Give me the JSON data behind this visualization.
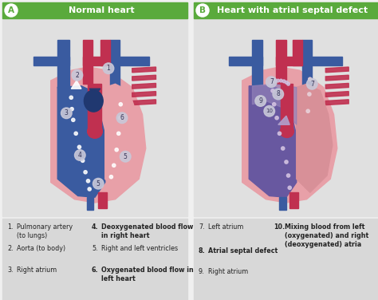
{
  "title_a": "Normal heart",
  "title_b": "Heart with atrial septal defect",
  "label_a": "A",
  "label_b": "B",
  "header_color": "#5aaa3c",
  "header_text_color": "#ffffff",
  "outer_bg": "#f0f0f0",
  "panel_bg": "#e0e0e0",
  "legend_bg": "#d8d8d8",
  "blue_vessel": "#3a5ba0",
  "red_vessel": "#cc3344",
  "heart_blue": "#3a5ba0",
  "heart_pink": "#e8a0a8",
  "heart_dark_red": "#b03040",
  "heart_purple": "#8878aa",
  "legend_left": [
    {
      "col": 1,
      "num": "1.",
      "text": "Pulmonary artery\n(to lungs)",
      "bold": false
    },
    {
      "col": 2,
      "num": "4.",
      "text": "Deoxygenated blood flow\nin right heart",
      "bold": true
    },
    {
      "col": 1,
      "num": "2.",
      "text": "Aorta (to body)",
      "bold": false
    },
    {
      "col": 2,
      "num": "5.",
      "text": "Right and left ventricles",
      "bold": false
    },
    {
      "col": 1,
      "num": "3.",
      "text": "Right atrium",
      "bold": false
    },
    {
      "col": 2,
      "num": "6.",
      "text": "Oxygenated blood flow in\nleft heart",
      "bold": true
    }
  ],
  "legend_right": [
    {
      "col": 1,
      "num": "7.",
      "text": "Left atrium",
      "bold": false
    },
    {
      "col": 2,
      "num": "10.",
      "text": "Mixing blood from left\n(oxygenated) and right\n(deoxygenated) atria",
      "bold": true
    },
    {
      "col": 1,
      "num": "8.",
      "text": "Atrial septal defect",
      "bold": true
    },
    {
      "col": 1,
      "num": "9.",
      "text": "Right atrium",
      "bold": false
    }
  ]
}
